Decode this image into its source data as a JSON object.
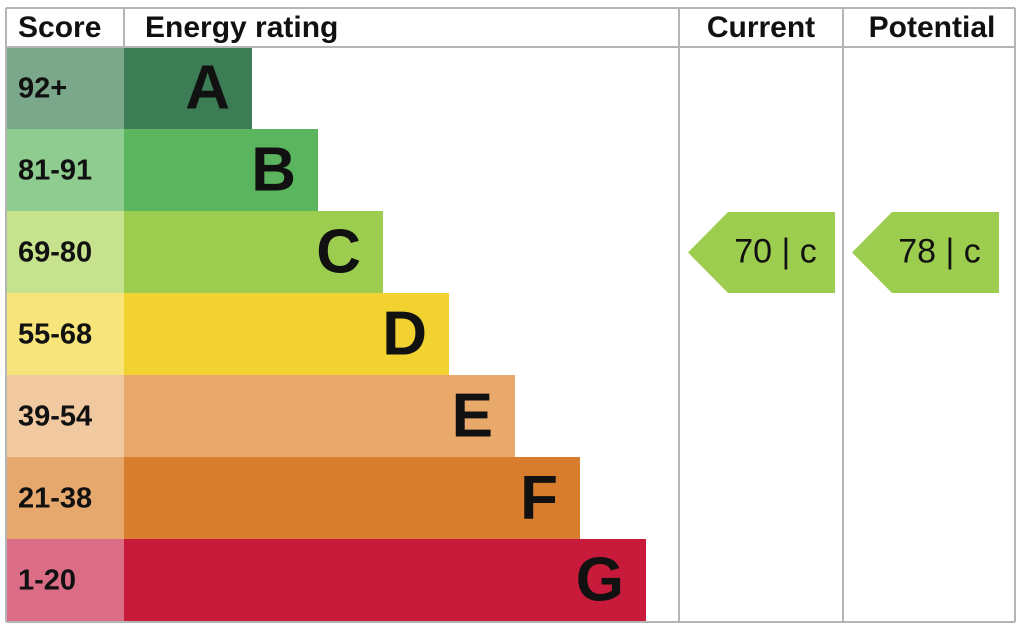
{
  "header": {
    "score": "Score",
    "rating": "Energy rating",
    "current": "Current",
    "potential": "Potential"
  },
  "bands": [
    {
      "score": "92+",
      "letter": "A"
    },
    {
      "score": "81-91",
      "letter": "B"
    },
    {
      "score": "69-80",
      "letter": "C"
    },
    {
      "score": "55-68",
      "letter": "D"
    },
    {
      "score": "39-54",
      "letter": "E"
    },
    {
      "score": "21-38",
      "letter": "F"
    },
    {
      "score": "1-20",
      "letter": "G"
    }
  ],
  "current": {
    "label": "70 |  c"
  },
  "potential": {
    "label": "78 |  c"
  }
}
